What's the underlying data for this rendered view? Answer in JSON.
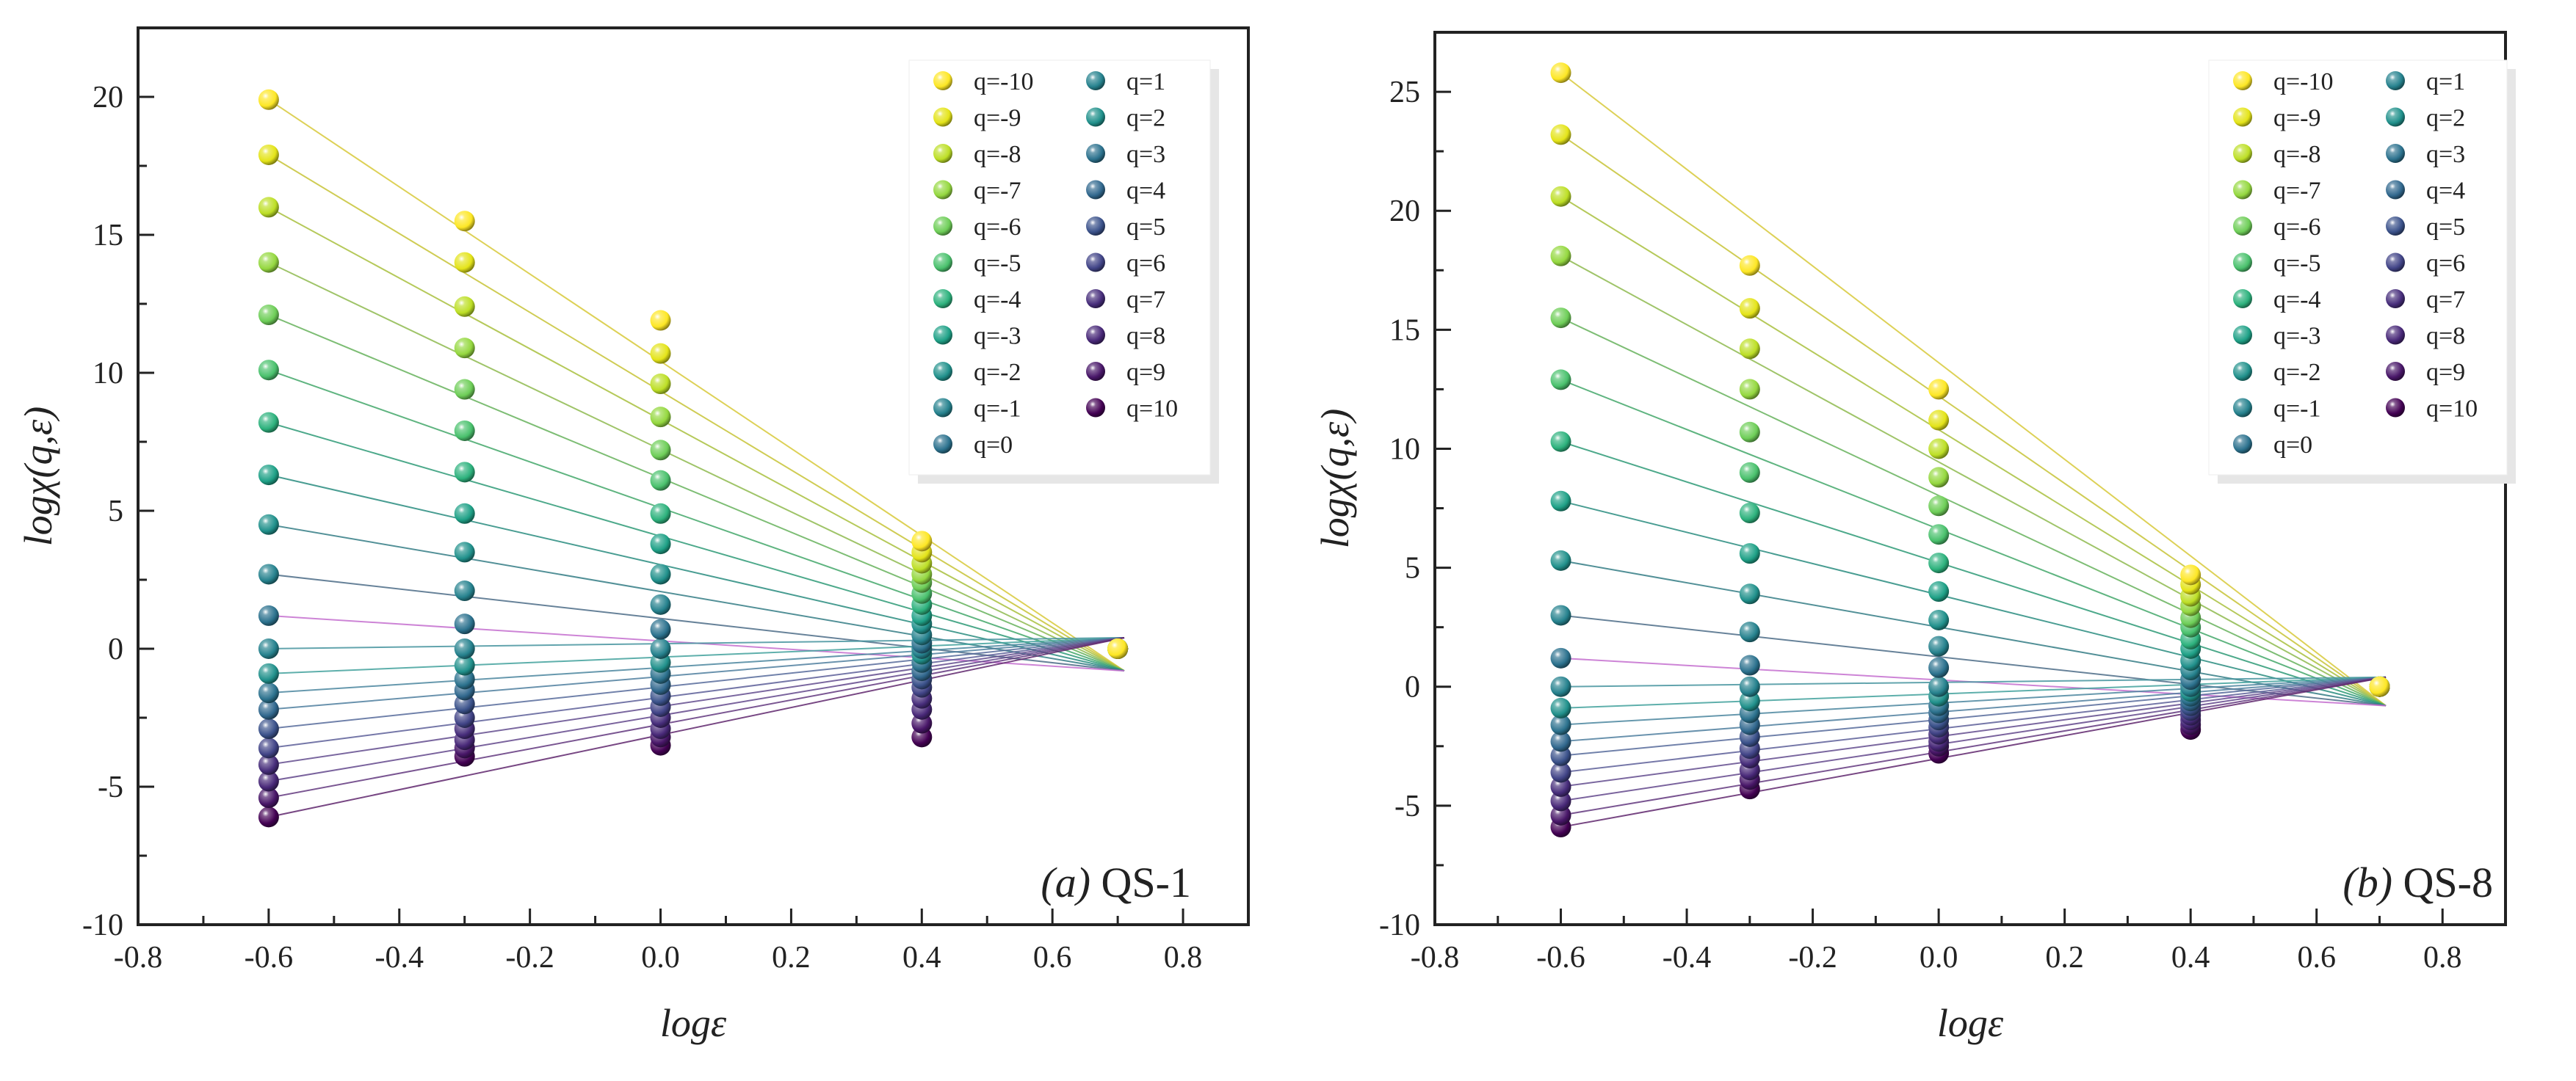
{
  "chart_data": [
    {
      "type": "scatter",
      "panel": "(a)",
      "label": "QS-1",
      "xlabel": "logε",
      "ylabel": "logχ(q,ε)",
      "xlim": [
        -0.8,
        0.9
      ],
      "ylim": [
        -10,
        22.5
      ],
      "xticks": [
        -0.8,
        -0.6,
        -0.4,
        -0.2,
        0.0,
        0.2,
        0.4,
        0.6,
        0.8
      ],
      "yticks": [
        -10,
        -5,
        0,
        5,
        10,
        15,
        20
      ],
      "x": [
        -0.6,
        -0.3,
        0.0,
        0.4,
        0.7
      ],
      "legend_position": "top-right",
      "series": [
        {
          "name": "q=-10",
          "color": "#fde725",
          "values": [
            19.9,
            15.5,
            11.9,
            3.9,
            0.0
          ]
        },
        {
          "name": "q=-9",
          "color": "#e4e419",
          "values": [
            17.9,
            14.0,
            10.7,
            3.5,
            0.0
          ]
        },
        {
          "name": "q=-8",
          "color": "#bddf26",
          "values": [
            16.0,
            12.4,
            9.6,
            3.1,
            0.0
          ]
        },
        {
          "name": "q=-7",
          "color": "#95d840",
          "values": [
            14.0,
            10.9,
            8.4,
            2.7,
            0.0
          ]
        },
        {
          "name": "q=-6",
          "color": "#6ece58",
          "values": [
            12.1,
            9.4,
            7.2,
            2.4,
            0.0
          ]
        },
        {
          "name": "q=-5",
          "color": "#4ac16d",
          "values": [
            10.1,
            7.9,
            6.1,
            2.0,
            0.0
          ]
        },
        {
          "name": "q=-4",
          "color": "#2db27d",
          "values": [
            8.2,
            6.4,
            4.9,
            1.6,
            0.0
          ]
        },
        {
          "name": "q=-3",
          "color": "#1fa187",
          "values": [
            6.3,
            4.9,
            3.8,
            1.2,
            0.0
          ]
        },
        {
          "name": "q=-2",
          "color": "#21918c",
          "values": [
            4.5,
            3.5,
            2.7,
            0.9,
            0.0
          ]
        },
        {
          "name": "q=-1",
          "color": "#26828e",
          "values": [
            2.7,
            2.1,
            1.6,
            0.5,
            0.0
          ]
        },
        {
          "name": "q=0",
          "color": "#2c728e",
          "values": [
            1.2,
            0.9,
            0.7,
            0.2,
            0.0
          ]
        },
        {
          "name": "q=1",
          "color": "#26828e",
          "values": [
            0.0,
            0.0,
            0.0,
            0.0,
            0.0
          ]
        },
        {
          "name": "q=2",
          "color": "#21918c",
          "values": [
            -0.9,
            -0.6,
            -0.5,
            -0.2,
            0.0
          ]
        },
        {
          "name": "q=3",
          "color": "#2c728e",
          "values": [
            -1.6,
            -1.1,
            -0.9,
            -0.5,
            0.0
          ]
        },
        {
          "name": "q=4",
          "color": "#31688e",
          "values": [
            -2.2,
            -1.5,
            -1.3,
            -0.8,
            0.0
          ]
        },
        {
          "name": "q=5",
          "color": "#3b528b",
          "values": [
            -2.9,
            -2.0,
            -1.7,
            -1.1,
            0.0
          ]
        },
        {
          "name": "q=6",
          "color": "#414487",
          "values": [
            -3.6,
            -2.5,
            -2.1,
            -1.4,
            0.0
          ]
        },
        {
          "name": "q=7",
          "color": "#472d7b",
          "values": [
            -4.2,
            -2.9,
            -2.5,
            -1.8,
            0.0
          ]
        },
        {
          "name": "q=8",
          "color": "#482878",
          "values": [
            -4.8,
            -3.3,
            -2.9,
            -2.2,
            0.0
          ]
        },
        {
          "name": "q=9",
          "color": "#481668",
          "values": [
            -5.4,
            -3.6,
            -3.2,
            -2.7,
            0.0
          ]
        },
        {
          "name": "q=10",
          "color": "#440154",
          "values": [
            -6.1,
            -3.9,
            -3.5,
            -3.2,
            0.0
          ]
        }
      ]
    },
    {
      "type": "scatter",
      "panel": "(b)",
      "label": "QS-8",
      "xlabel": "logε",
      "ylabel": "logχ(q,ε)",
      "xlim": [
        -0.8,
        0.9
      ],
      "ylim": [
        -10,
        27.5
      ],
      "xticks": [
        -0.8,
        -0.6,
        -0.4,
        -0.2,
        0.0,
        0.2,
        0.4,
        0.6,
        0.8
      ],
      "yticks": [
        -10,
        -5,
        0,
        5,
        10,
        15,
        20,
        25
      ],
      "x": [
        -0.6,
        -0.3,
        0.0,
        0.4,
        0.7
      ],
      "legend_position": "top-right",
      "series": [
        {
          "name": "q=-10",
          "color": "#fde725",
          "values": [
            25.8,
            17.7,
            12.5,
            4.7,
            0.0
          ]
        },
        {
          "name": "q=-9",
          "color": "#e4e419",
          "values": [
            23.2,
            15.9,
            11.2,
            4.3,
            0.0
          ]
        },
        {
          "name": "q=-8",
          "color": "#bddf26",
          "values": [
            20.6,
            14.2,
            10.0,
            3.8,
            0.0
          ]
        },
        {
          "name": "q=-7",
          "color": "#95d840",
          "values": [
            18.1,
            12.5,
            8.8,
            3.4,
            0.0
          ]
        },
        {
          "name": "q=-6",
          "color": "#6ece58",
          "values": [
            15.5,
            10.7,
            7.6,
            2.9,
            0.0
          ]
        },
        {
          "name": "q=-5",
          "color": "#4ac16d",
          "values": [
            12.9,
            9.0,
            6.4,
            2.5,
            0.0
          ]
        },
        {
          "name": "q=-4",
          "color": "#2db27d",
          "values": [
            10.3,
            7.3,
            5.2,
            2.0,
            0.0
          ]
        },
        {
          "name": "q=-3",
          "color": "#1fa187",
          "values": [
            7.8,
            5.6,
            4.0,
            1.6,
            0.0
          ]
        },
        {
          "name": "q=-2",
          "color": "#21918c",
          "values": [
            5.3,
            3.9,
            2.8,
            1.1,
            0.0
          ]
        },
        {
          "name": "q=-1",
          "color": "#26828e",
          "values": [
            3.0,
            2.3,
            1.7,
            0.7,
            0.0
          ]
        },
        {
          "name": "q=0",
          "color": "#2c728e",
          "values": [
            1.2,
            0.9,
            0.8,
            0.3,
            0.0
          ]
        },
        {
          "name": "q=1",
          "color": "#26828e",
          "values": [
            0.0,
            0.0,
            0.0,
            0.0,
            0.0
          ]
        },
        {
          "name": "q=2",
          "color": "#21918c",
          "values": [
            -0.9,
            -0.6,
            -0.4,
            -0.2,
            0.0
          ]
        },
        {
          "name": "q=3",
          "color": "#2c728e",
          "values": [
            -1.6,
            -1.1,
            -0.8,
            -0.4,
            0.0
          ]
        },
        {
          "name": "q=4",
          "color": "#31688e",
          "values": [
            -2.3,
            -1.6,
            -1.1,
            -0.6,
            0.0
          ]
        },
        {
          "name": "q=5",
          "color": "#3b528b",
          "values": [
            -2.9,
            -2.1,
            -1.4,
            -0.8,
            0.0
          ]
        },
        {
          "name": "q=6",
          "color": "#414487",
          "values": [
            -3.6,
            -2.6,
            -1.7,
            -1.0,
            0.0
          ]
        },
        {
          "name": "q=7",
          "color": "#472d7b",
          "values": [
            -4.2,
            -3.0,
            -2.0,
            -1.2,
            0.0
          ]
        },
        {
          "name": "q=8",
          "color": "#482878",
          "values": [
            -4.8,
            -3.5,
            -2.3,
            -1.4,
            0.0
          ]
        },
        {
          "name": "q=9",
          "color": "#481668",
          "values": [
            -5.4,
            -3.9,
            -2.5,
            -1.6,
            0.0
          ]
        },
        {
          "name": "q=10",
          "color": "#440154",
          "values": [
            -5.9,
            -4.3,
            -2.8,
            -1.8,
            0.0
          ]
        }
      ]
    }
  ]
}
